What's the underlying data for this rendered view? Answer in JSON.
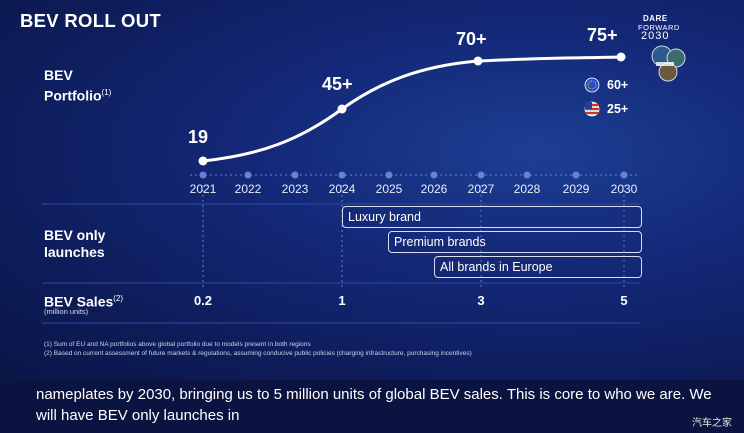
{
  "slide": {
    "title": "BEV ROLL OUT",
    "logo": {
      "line1": "DARE",
      "line2": "FORWARD",
      "year": "2030"
    },
    "rows": {
      "portfolio_label": "BEV",
      "portfolio_label2": "Portfolio",
      "portfolio_note": "(1)",
      "launches_label": "BEV only launches",
      "sales_label": "BEV Sales",
      "sales_note": "(2)",
      "sales_unit": "(million units)"
    },
    "years": [
      "2021",
      "2022",
      "2023",
      "2024",
      "2025",
      "2026",
      "2027",
      "2028",
      "2029",
      "2030"
    ],
    "portfolio_points": [
      {
        "year": "2021",
        "label": "19"
      },
      {
        "year": "2024",
        "label": "45+"
      },
      {
        "year": "2027",
        "label": "70+"
      },
      {
        "year": "2030",
        "label": "75+"
      }
    ],
    "regional": [
      {
        "region": "EU",
        "value": "60+"
      },
      {
        "region": "US",
        "value": "25+"
      }
    ],
    "launches": [
      "Luxury brand",
      "Premium brands",
      "All brands in Europe"
    ],
    "sales": [
      {
        "year": "2021",
        "value": "0.2"
      },
      {
        "year": "2024",
        "value": "1"
      },
      {
        "year": "2027",
        "value": "3"
      },
      {
        "year": "2030",
        "value": "5"
      }
    ],
    "footnotes": [
      "(1) Sum of EU and NA portfolios above global portfolio due to models present in both regions",
      "(2) Based on current assessment of future markets & regulations, assuming conducive public policies (charging infrastructure, purchasing incentives)"
    ]
  },
  "subtitle": "nameplates by 2030, bringing us to 5 million units of global BEV sales. This is core to who we are. We will have BEV only launches in",
  "watermark": "汽车之家",
  "colors": {
    "accent_dot": "#6b7fd6",
    "line": "#ffffff"
  }
}
